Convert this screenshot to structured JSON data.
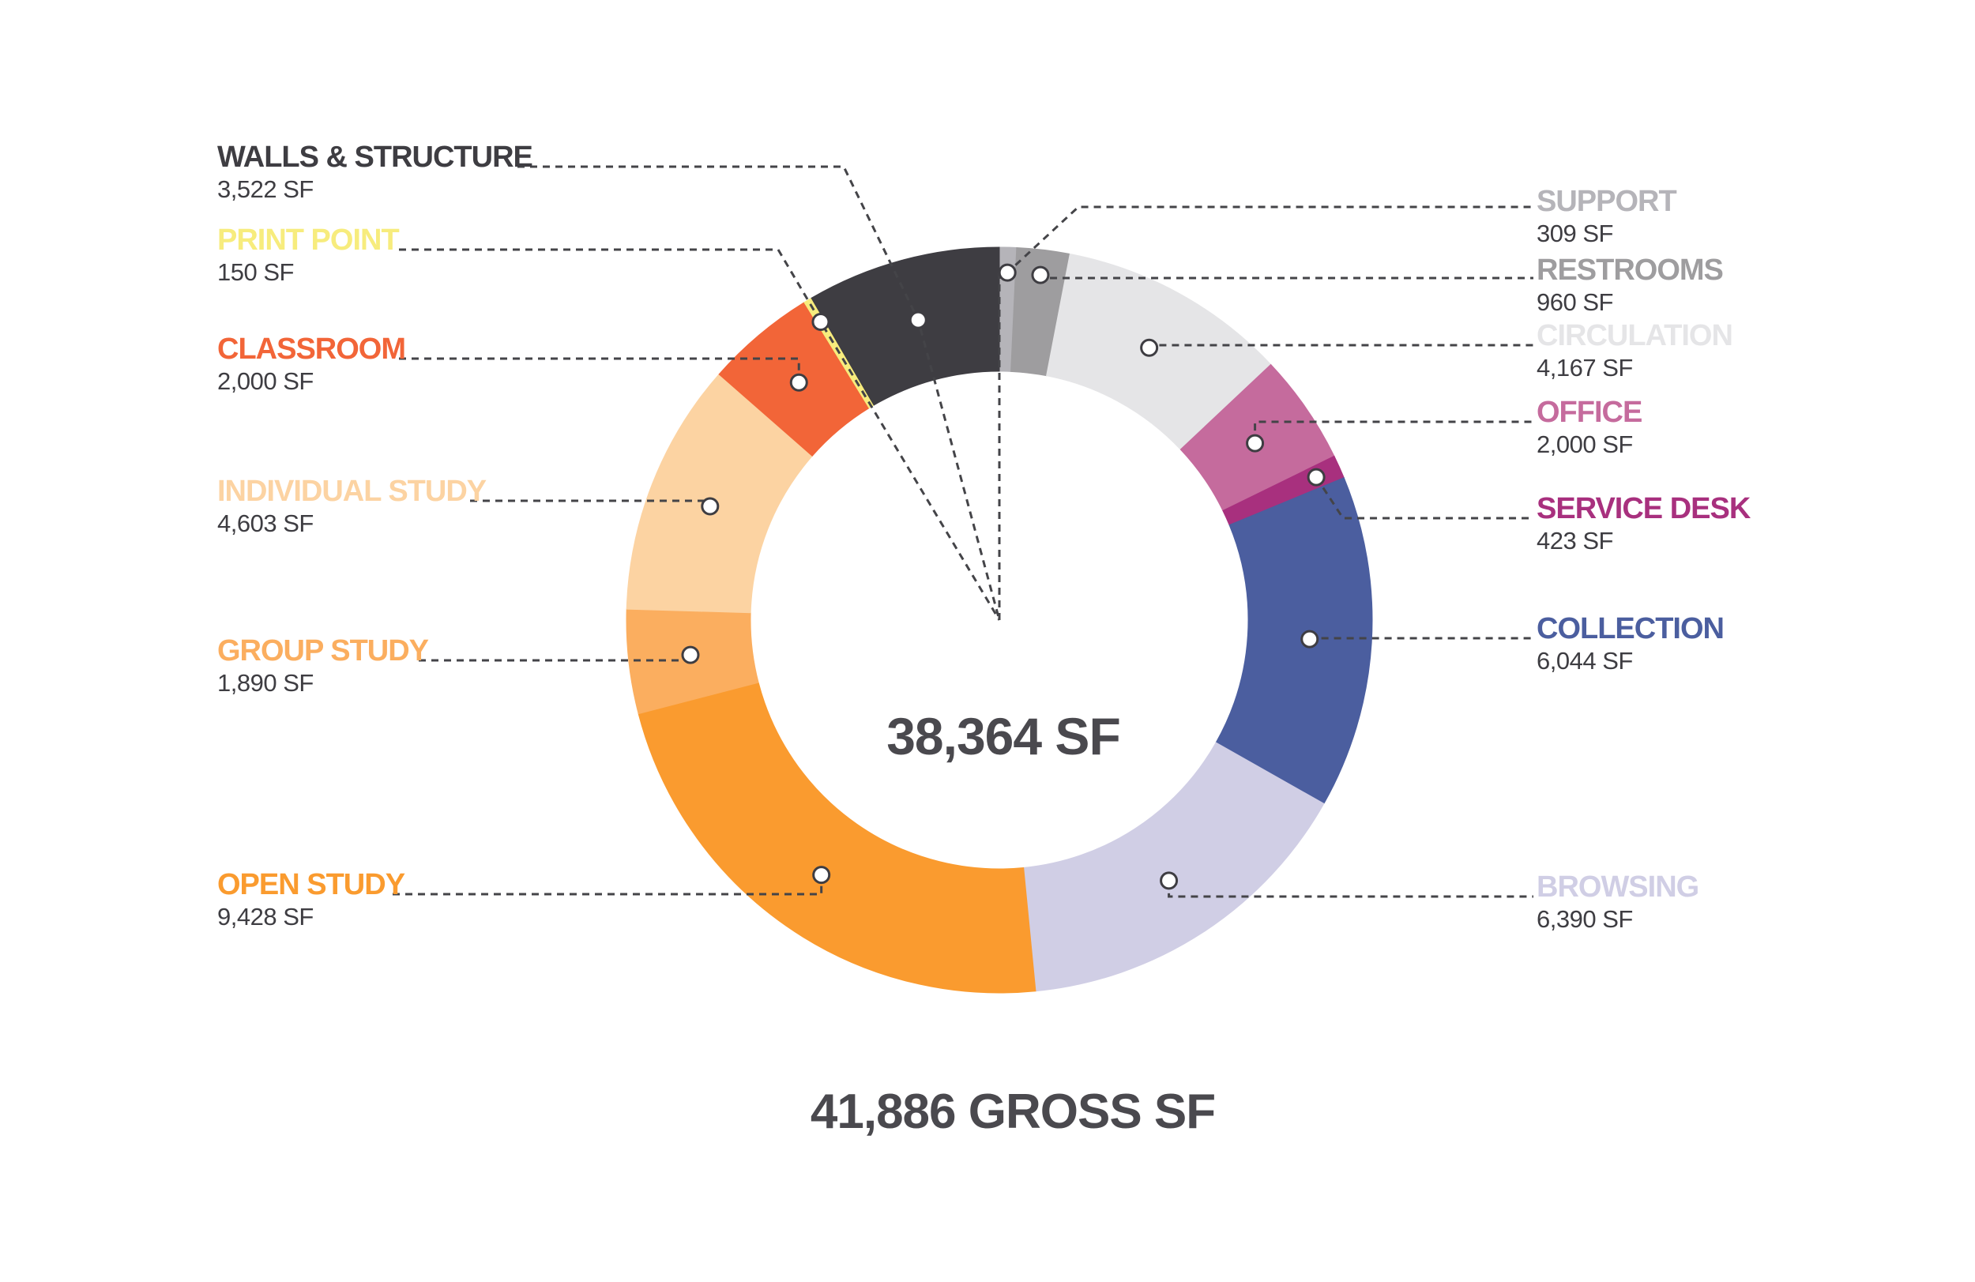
{
  "chart_data": {
    "type": "pie",
    "variant": "donut",
    "center_label": "38,364 SF",
    "footer_label": "41,886 GROSS SF",
    "slices": [
      {
        "key": "support",
        "name": "SUPPORT",
        "value_label": "309 SF",
        "value": 309,
        "color": "#b5b4b9",
        "side": "right"
      },
      {
        "key": "restrooms",
        "name": "RESTROOMS",
        "value_label": "960 SF",
        "value": 960,
        "color": "#9e9d9f",
        "side": "right"
      },
      {
        "key": "circulation",
        "name": "CIRCULATION",
        "value_label": "4,167 SF",
        "value": 4167,
        "color": "#e5e5e7",
        "side": "right"
      },
      {
        "key": "office",
        "name": "OFFICE",
        "value_label": "2,000 SF",
        "value": 2000,
        "color": "#c56b9d",
        "side": "right"
      },
      {
        "key": "service-desk",
        "name": "SERVICE DESK",
        "value_label": "423 SF",
        "value": 423,
        "color": "#a8307e",
        "side": "right"
      },
      {
        "key": "collection",
        "name": "COLLECTION",
        "value_label": "6,044 SF",
        "value": 6044,
        "color": "#4b5e9f",
        "side": "right"
      },
      {
        "key": "browsing",
        "name": "BROWSING",
        "value_label": "6,390 SF",
        "value": 6390,
        "color": "#d0cee5",
        "side": "right"
      },
      {
        "key": "open-study",
        "name": "OPEN STUDY",
        "value_label": "9,428 SF",
        "value": 9428,
        "color": "#fa9b2f",
        "side": "left"
      },
      {
        "key": "group-study",
        "name": "GROUP STUDY",
        "value_label": "1,890 SF",
        "value": 1890,
        "color": "#fbae5f",
        "side": "left"
      },
      {
        "key": "individual-study",
        "name": "INDIVIDUAL STUDY",
        "value_label": "4,603 SF",
        "value": 4603,
        "color": "#fcd3a2",
        "side": "left"
      },
      {
        "key": "classroom",
        "name": "CLASSROOM",
        "value_label": "2,000 SF",
        "value": 2000,
        "color": "#f26538",
        "side": "left"
      },
      {
        "key": "print-point",
        "name": "PRINT POINT",
        "value_label": "150 SF",
        "value": 150,
        "color": "#f7ec7d",
        "side": "left"
      },
      {
        "key": "walls-structure",
        "name": "WALLS & STRUCTURE",
        "value_label": "3,522 SF",
        "value": 3522,
        "color": "#3e3d42",
        "side": "left"
      }
    ]
  }
}
